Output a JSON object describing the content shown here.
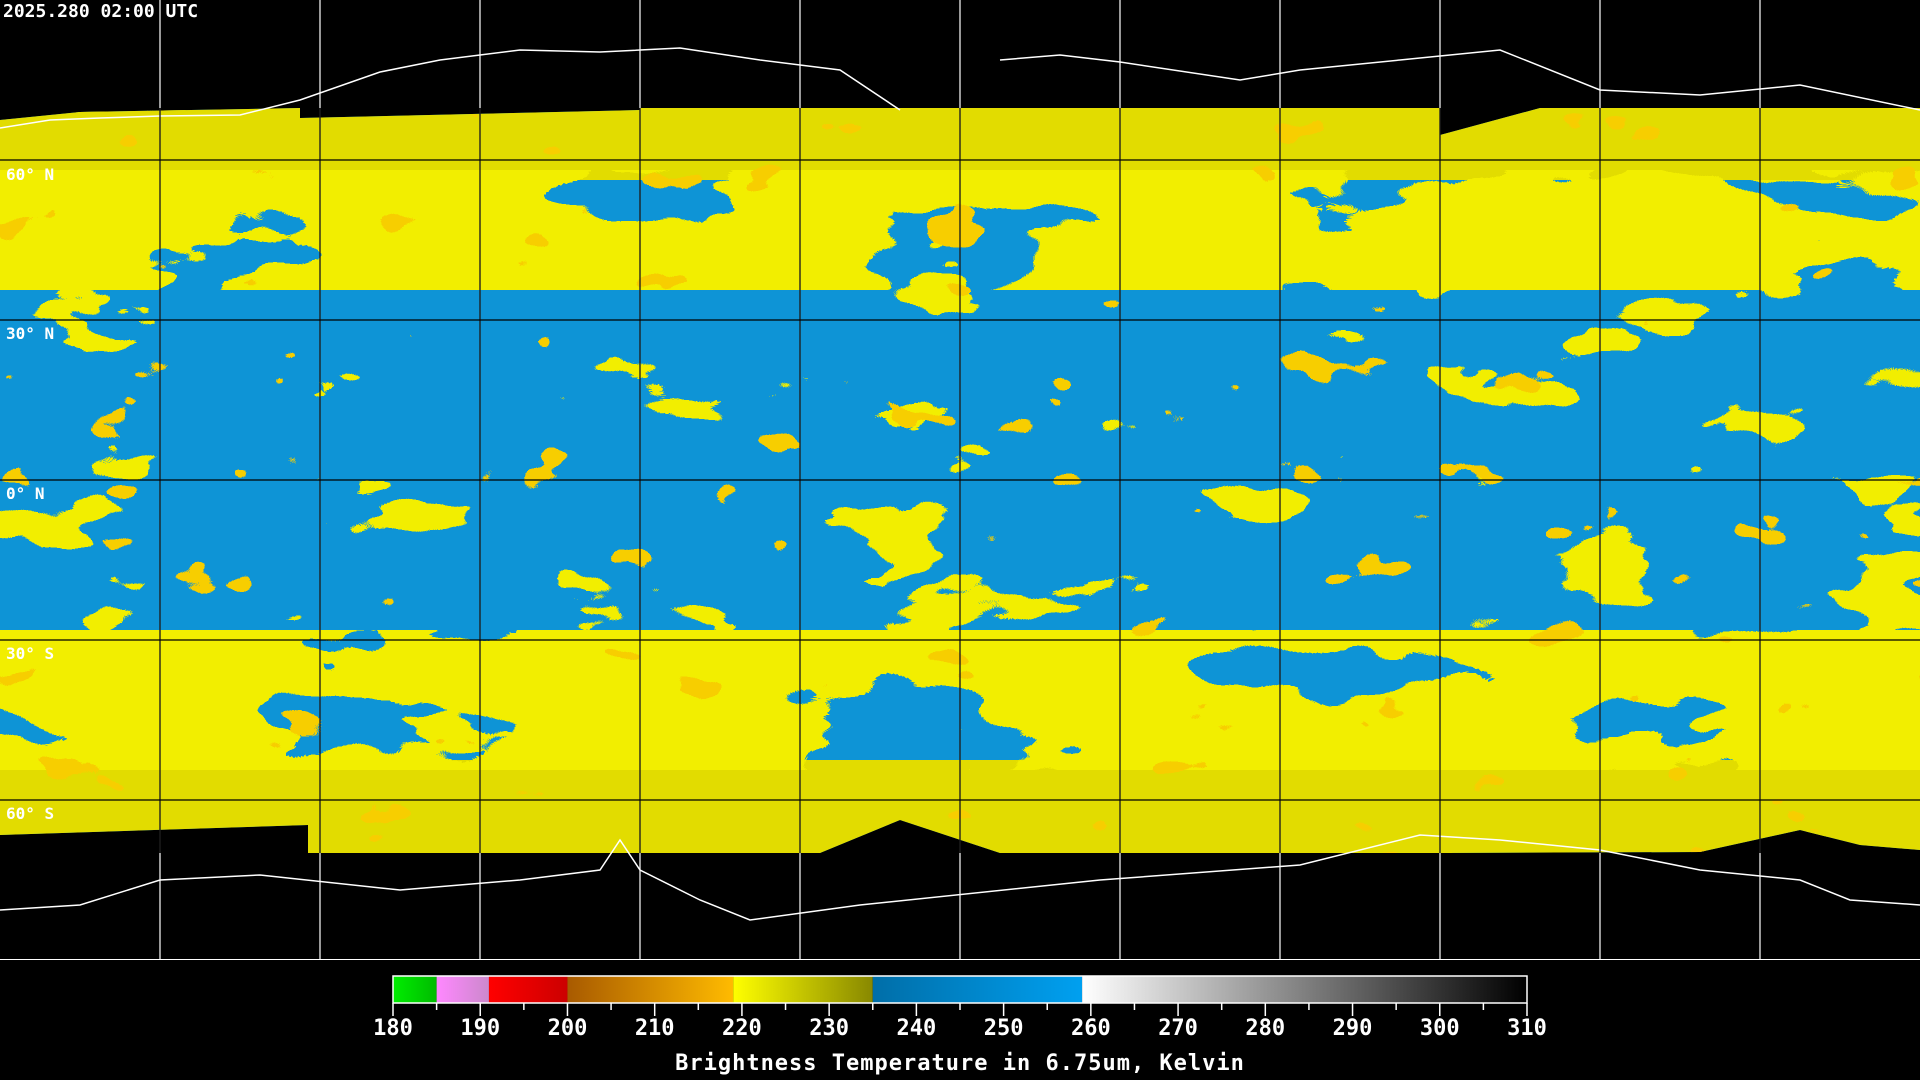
{
  "timestamp": "2025.280 02:00 UTC",
  "latitude_labels": [
    "60° N",
    "30° N",
    "0° N",
    "30° S",
    "60° S"
  ],
  "colorbar": {
    "title": "Brightness Temperature in 6.75um, Kelvin",
    "min": 180,
    "max": 310,
    "tick_labels": [
      "180",
      "190",
      "200",
      "210",
      "220",
      "230",
      "240",
      "250",
      "260",
      "270",
      "280",
      "290",
      "300",
      "310"
    ],
    "segments": [
      {
        "from": 180,
        "to": 185,
        "colors": [
          "#00ee00",
          "#00bb00"
        ]
      },
      {
        "from": 185,
        "to": 191,
        "colors": [
          "#ff88ff",
          "#cc88cc"
        ]
      },
      {
        "from": 191,
        "to": 200,
        "colors": [
          "#ff0000",
          "#cc0000"
        ]
      },
      {
        "from": 200,
        "to": 219,
        "colors": [
          "#a85a00",
          "#ffbb00"
        ]
      },
      {
        "from": 219,
        "to": 235,
        "colors": [
          "#ffff00",
          "#888800"
        ]
      },
      {
        "from": 235,
        "to": 259,
        "colors": [
          "#006ea8",
          "#00a0f0"
        ]
      },
      {
        "from": 259,
        "to": 310,
        "colors": [
          "#ffffff",
          "#000000"
        ]
      }
    ]
  },
  "colors": {
    "moist_blue": "#0e94d6",
    "dry_yellow": "#e2dc00",
    "cold_orange": "#eea000",
    "grid": "#000000",
    "coastline": "#ffffff"
  }
}
